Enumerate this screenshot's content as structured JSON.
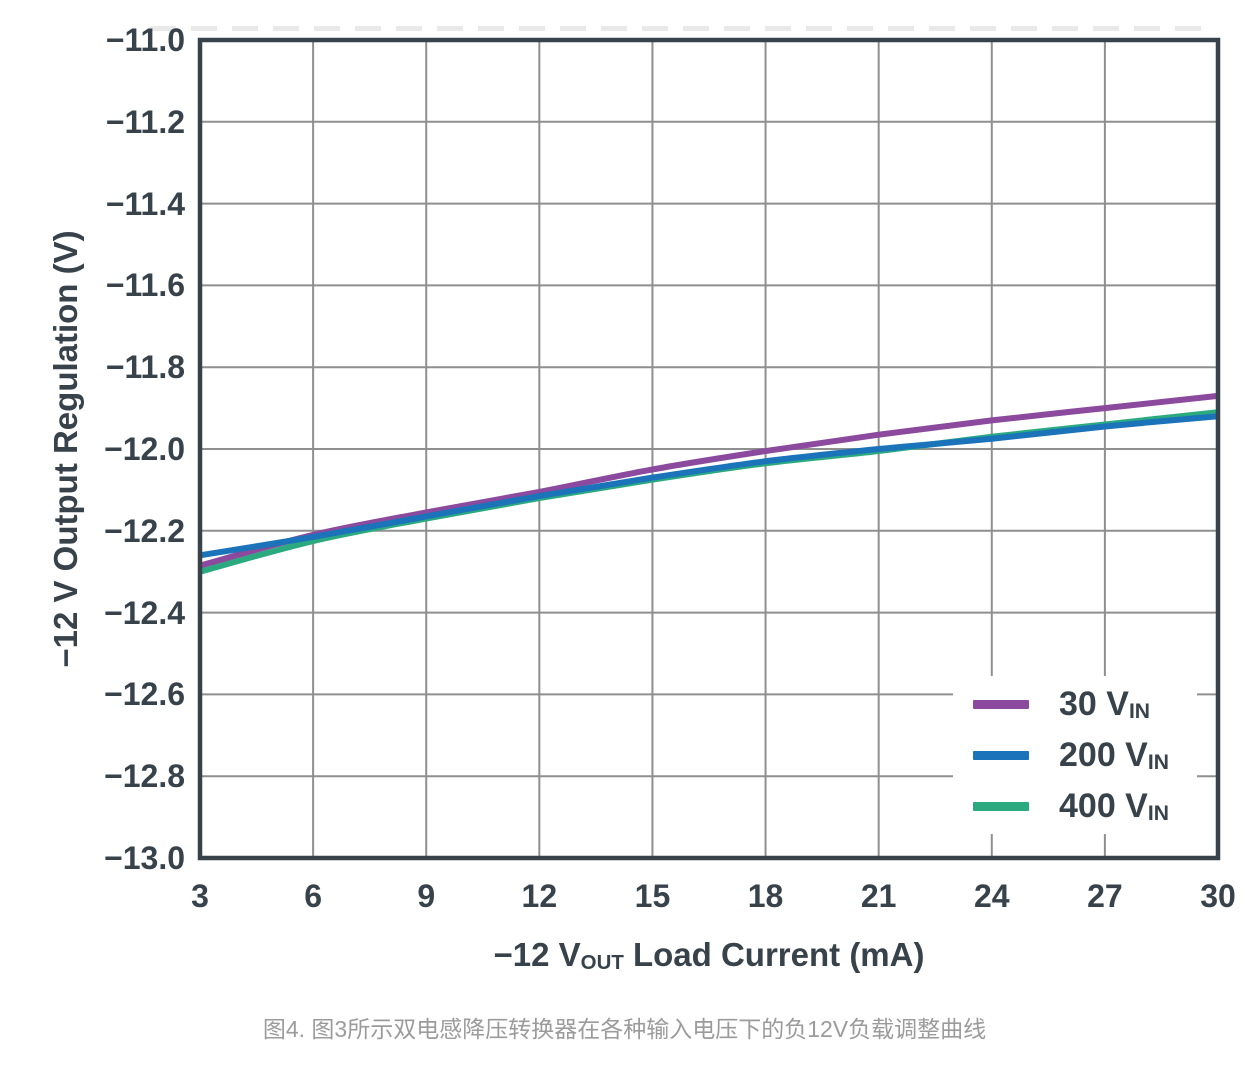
{
  "figure": {
    "caption": "图4. 图3所示双电感降压转换器在各种输入电压下的负12V负载调整曲线"
  },
  "colors": {
    "axis_frame": "#37424A",
    "gridline": "#8F8F8F",
    "text": "#37424A",
    "caption_text": "#9B9B9B",
    "background": "#FFFFFF"
  },
  "chart_data": {
    "type": "line",
    "title": "",
    "ylabel": "−12 V Output Regulation (V)",
    "xlabel_parts": {
      "prefix": "−12 V",
      "sub": "OUT",
      "suffix": " Load Current (mA)"
    },
    "xlim": [
      3,
      30
    ],
    "ylim": [
      -13.0,
      -11.0
    ],
    "xticks": [
      3,
      6,
      9,
      12,
      15,
      18,
      21,
      24,
      27,
      30
    ],
    "yticks": [
      -11.0,
      -11.2,
      -11.4,
      -11.6,
      -11.8,
      -12.0,
      -12.2,
      -12.4,
      -12.6,
      -12.8,
      -13.0
    ],
    "ytick_labels": [
      "−11.0",
      "−11.2",
      "−11.4",
      "−11.6",
      "−11.8",
      "−12.0",
      "−12.2",
      "−12.4",
      "−12.6",
      "−12.8",
      "−13.0"
    ],
    "grid": true,
    "legend_position": "bottom-right",
    "x": [
      3,
      6,
      9,
      12,
      15,
      18,
      21,
      24,
      27,
      30
    ],
    "series": [
      {
        "name": "30 VIN",
        "legend_main": "30 V",
        "legend_sub": "IN",
        "color": "#8B4A9E",
        "values": [
          -12.285,
          -12.21,
          -12.155,
          -12.105,
          -12.05,
          -12.005,
          -11.965,
          -11.93,
          -11.9,
          -11.87
        ]
      },
      {
        "name": "200 VIN",
        "legend_main": "200 V",
        "legend_sub": "IN",
        "color": "#1B73B9",
        "values": [
          -12.26,
          -12.215,
          -12.165,
          -12.115,
          -12.07,
          -12.03,
          -12.0,
          -11.975,
          -11.945,
          -11.92
        ]
      },
      {
        "name": "400 VIN",
        "legend_main": "400 V",
        "legend_sub": "IN",
        "color": "#2BAA80",
        "values": [
          -12.3,
          -12.225,
          -12.17,
          -12.12,
          -12.075,
          -12.035,
          -12.005,
          -11.97,
          -11.94,
          -11.91
        ]
      }
    ],
    "z_order": [
      2,
      0,
      1
    ],
    "line_width": 6
  }
}
